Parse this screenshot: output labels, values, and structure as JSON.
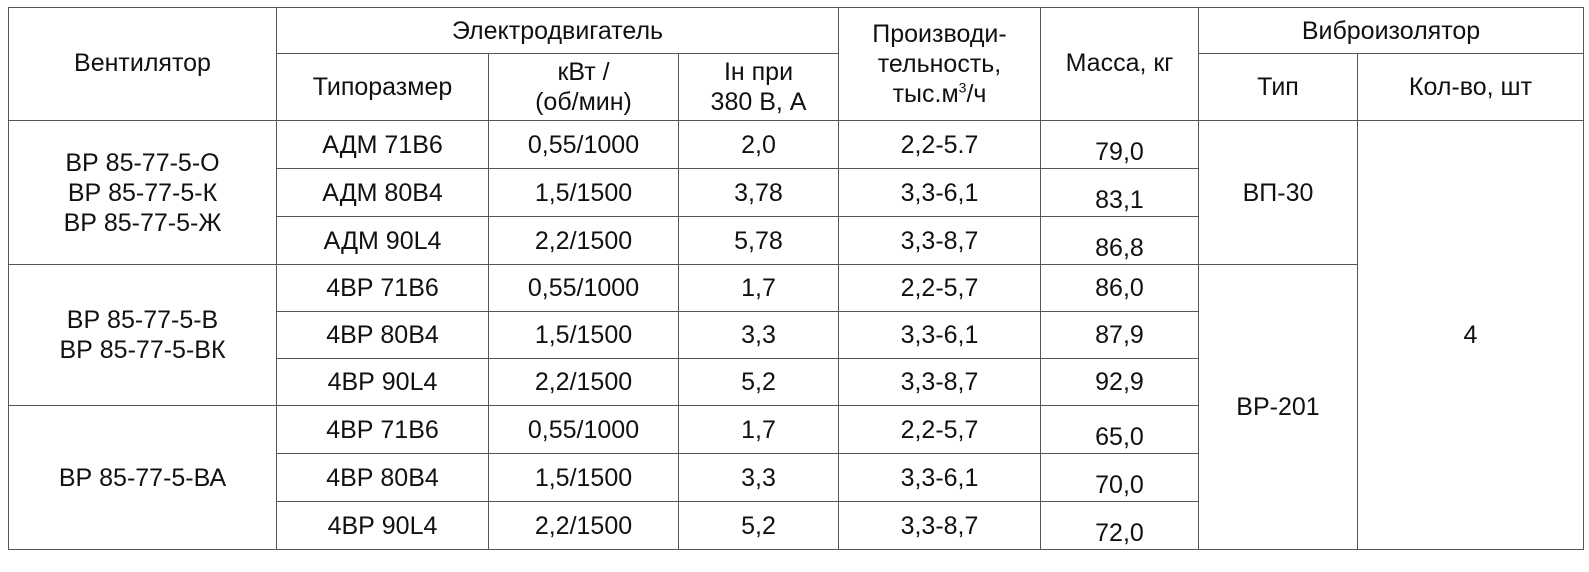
{
  "header": {
    "fan": "Вентилятор",
    "motor": "Электродвигатель",
    "motor_size": "Типоразмер",
    "motor_power_1": "кВт /",
    "motor_power_2": "(об/мин)",
    "motor_current_1": "Iн при",
    "motor_current_2": "380 В, А",
    "capacity_1": "Производи-",
    "capacity_2": "тельность,",
    "capacity_3a": "тыс.м",
    "capacity_3sup": "3",
    "capacity_3b": "/ч",
    "mass": "Масса, кг",
    "isolator": "Виброизолятор",
    "isolator_type": "Тип",
    "isolator_qty": "Кол-во, шт"
  },
  "groups": [
    {
      "fans": [
        "ВР 85-77-5-О",
        "ВР 85-77-5-К",
        "ВР 85-77-5-Ж"
      ],
      "rows": [
        {
          "size": "АДМ 71В6",
          "power": "0,55/1000",
          "current": "2,0",
          "capacity": "2,2-5.7",
          "mass": "79,0"
        },
        {
          "size": "АДМ 80В4",
          "power": "1,5/1500",
          "current": "3,78",
          "capacity": "3,3-6,1",
          "mass": "83,1"
        },
        {
          "size": "АДМ 90L4",
          "power": "2,2/1500",
          "current": "5,78",
          "capacity": "3,3-8,7",
          "mass": "86,8"
        }
      ]
    },
    {
      "fans": [
        "ВР 85-77-5-В",
        "ВР 85-77-5-ВК"
      ],
      "rows": [
        {
          "size": "4ВР 71В6",
          "power": "0,55/1000",
          "current": "1,7",
          "capacity": "2,2-5,7",
          "mass": "86,0"
        },
        {
          "size": "4ВР 80В4",
          "power": "1,5/1500",
          "current": "3,3",
          "capacity": "3,3-6,1",
          "mass": "87,9"
        },
        {
          "size": "4ВР 90L4",
          "power": "2,2/1500",
          "current": "5,2",
          "capacity": "3,3-8,7",
          "mass": "92,9"
        }
      ]
    },
    {
      "fans": [
        "ВР 85-77-5-ВА"
      ],
      "rows": [
        {
          "size": "4ВР 71В6",
          "power": "0,55/1000",
          "current": "1,7",
          "capacity": "2,2-5,7",
          "mass": "65,0"
        },
        {
          "size": "4ВР 80В4",
          "power": "1,5/1500",
          "current": "3,3",
          "capacity": "3,3-6,1",
          "mass": "70,0"
        },
        {
          "size": "4ВР 90L4",
          "power": "2,2/1500",
          "current": "5,2",
          "capacity": "3,3-8,7",
          "mass": "72,0"
        }
      ]
    }
  ],
  "isolators": [
    {
      "type": "ВП-30"
    },
    {
      "type": "ВР-201"
    }
  ],
  "isolator_qty": "4"
}
